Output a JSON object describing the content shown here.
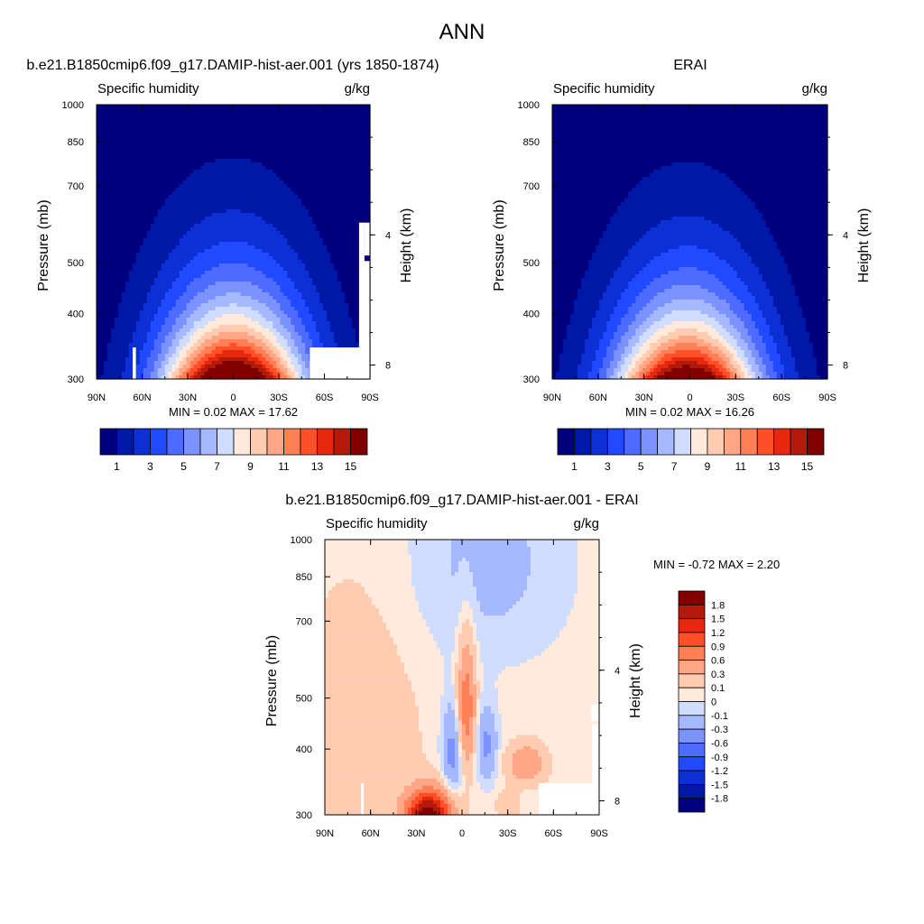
{
  "title": "ANN",
  "chart_data": [
    {
      "id": "model",
      "type": "contour",
      "header": "b.e21.B1850cmip6.f09_g17.DAMIP-hist-aer.001 (yrs 1850-1874)",
      "left_label": "Specific humidity",
      "right_label": "g/kg",
      "ylabel": "Pressure (mb)",
      "ylabel_right": "Height (km)",
      "xticks": [
        "90N",
        "60N",
        "30N",
        "0",
        "30S",
        "60S",
        "90S"
      ],
      "yticks": [
        "300",
        "400",
        "500",
        "700",
        "850",
        "1000"
      ],
      "yticks_right": [
        "8",
        "4"
      ],
      "stats": "MIN =   0.02  MAX =  17.62",
      "min": 0.02,
      "max": 17.62,
      "levels": [
        1,
        2,
        3,
        4,
        5,
        6,
        7,
        8,
        9,
        10,
        11,
        12,
        13,
        14,
        15
      ],
      "colorbar_labels": [
        "1",
        "3",
        "5",
        "7",
        "9",
        "11",
        "13",
        "15"
      ],
      "colorbar_orientation": "horizontal",
      "colors": [
        "#00007f",
        "#0018a8",
        "#0c30d6",
        "#2149ff",
        "#4d6bff",
        "#7b92ff",
        "#a6b8ff",
        "#d1ddff",
        "#ffeadc",
        "#ffcbb1",
        "#ffa685",
        "#ff7f57",
        "#ff4f28",
        "#e6280f",
        "#b31a0a",
        "#800000"
      ]
    },
    {
      "id": "obs",
      "type": "contour",
      "header": "ERAI",
      "left_label": "Specific humidity",
      "right_label": "g/kg",
      "ylabel": "Pressure (mb)",
      "ylabel_right": "Height (km)",
      "xticks": [
        "90N",
        "60N",
        "30N",
        "0",
        "30S",
        "60S",
        "90S"
      ],
      "yticks": [
        "300",
        "400",
        "500",
        "700",
        "850",
        "1000"
      ],
      "yticks_right": [
        "8",
        "4"
      ],
      "stats": "MIN =   0.02  MAX =  16.26",
      "min": 0.02,
      "max": 16.26,
      "levels": [
        1,
        2,
        3,
        4,
        5,
        6,
        7,
        8,
        9,
        10,
        11,
        12,
        13,
        14,
        15
      ],
      "colorbar_labels": [
        "1",
        "3",
        "5",
        "7",
        "9",
        "11",
        "13",
        "15"
      ],
      "colorbar_orientation": "horizontal",
      "colors": [
        "#00007f",
        "#0018a8",
        "#0c30d6",
        "#2149ff",
        "#4d6bff",
        "#7b92ff",
        "#a6b8ff",
        "#d1ddff",
        "#ffeadc",
        "#ffcbb1",
        "#ffa685",
        "#ff7f57",
        "#ff4f28",
        "#e6280f",
        "#b31a0a",
        "#800000"
      ]
    },
    {
      "id": "diff",
      "type": "contour",
      "header": "b.e21.B1850cmip6.f09_g17.DAMIP-hist-aer.001 - ERAI",
      "left_label": "Specific humidity",
      "right_label": "g/kg",
      "ylabel": "Pressure (mb)",
      "ylabel_right": "Height (km)",
      "xticks": [
        "90N",
        "60N",
        "30N",
        "0",
        "30S",
        "60S",
        "90S"
      ],
      "yticks": [
        "300",
        "400",
        "500",
        "700",
        "850",
        "1000"
      ],
      "yticks_right": [
        "8",
        "4"
      ],
      "stats": "MIN =  -0.72  MAX =   2.20",
      "min": -0.72,
      "max": 2.2,
      "levels": [
        -1.8,
        -1.5,
        -1.2,
        -0.9,
        -0.6,
        -0.3,
        -0.1,
        0,
        0.1,
        0.3,
        0.6,
        0.9,
        1.2,
        1.5,
        1.8
      ],
      "colorbar_labels": [
        "1.8",
        "1.5",
        "1.2",
        "0.9",
        "0.6",
        "0.3",
        "0.1",
        "0",
        "-0.1",
        "-0.3",
        "-0.6",
        "-0.9",
        "-1.2",
        "-1.5",
        "-1.8"
      ],
      "colorbar_orientation": "vertical",
      "colors": [
        "#00007f",
        "#0018a8",
        "#0c30d6",
        "#2149ff",
        "#4d6bff",
        "#7b92ff",
        "#a6b8ff",
        "#d1ddff",
        "#ffeadc",
        "#ffcbb1",
        "#ffa685",
        "#ff7f57",
        "#ff4f28",
        "#e6280f",
        "#b31a0a",
        "#800000"
      ]
    }
  ]
}
